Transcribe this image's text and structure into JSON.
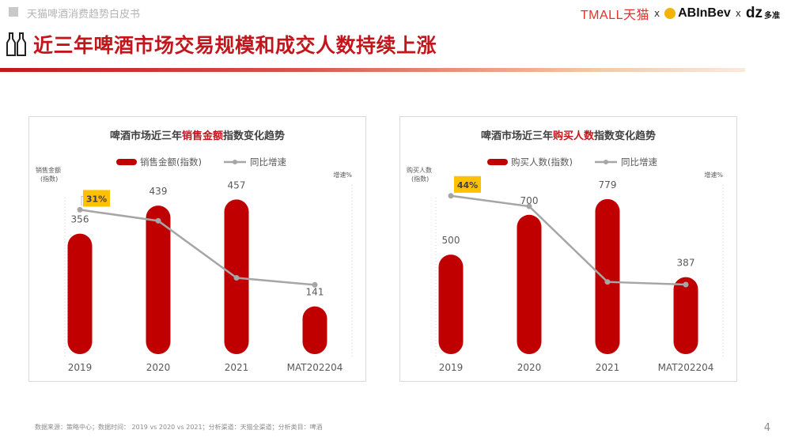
{
  "header": {
    "tag": "天猫啤酒消费趋势白皮书"
  },
  "logos": {
    "tmall": "TMALL天猫",
    "sep1": "x",
    "abinbev": "ABInBev",
    "sep2": "x",
    "dz": "dz",
    "dz_cn": "多准"
  },
  "page_title": "近三年啤酒市场交易规模和成交人数持续上涨",
  "footer": "数据来源：策略中心；数据时间： 2019 vs 2020 vs 2021；分析渠道：天猫全渠道；分析类目：啤酒",
  "page_number": "4",
  "colors": {
    "bar": "#c00000",
    "line": "#a6a6a6",
    "title_red": "#c3161c",
    "badge": "#ffc000"
  },
  "chart_data": [
    {
      "type": "bar",
      "title": {
        "prefix": "啤酒市场近三年",
        "highlight": "销售金额",
        "suffix": "指数变化趋势"
      },
      "categories": [
        "2019",
        "2020",
        "2021",
        "MAT202204"
      ],
      "series": [
        {
          "name": "销售金额(指数)",
          "type": "bar",
          "values": [
            356,
            439,
            457,
            141
          ]
        },
        {
          "name": "同比增速",
          "type": "line",
          "values": [
            0.31,
            0.2,
            -0.37,
            -0.44
          ]
        }
      ],
      "ylabel_left": [
        "销售金额",
        "(指数)"
      ],
      "ylabel_right": "增速%",
      "ylim": [
        0,
        500
      ],
      "annotation": "31%",
      "grid": false,
      "legend": "top-center"
    },
    {
      "type": "bar",
      "title": {
        "prefix": "啤酒市场近三年",
        "highlight": "购买人数",
        "suffix": "指数变化趋势"
      },
      "categories": [
        "2019",
        "2020",
        "2021",
        "MAT202204"
      ],
      "series": [
        {
          "name": "购买人数(指数)",
          "type": "bar",
          "values": [
            500,
            700,
            779,
            387
          ]
        },
        {
          "name": "同比增速",
          "type": "line",
          "values": [
            0.44,
            0.4,
            0.11,
            0.1
          ]
        }
      ],
      "ylabel_left": [
        "购买人数",
        "(指数)"
      ],
      "ylabel_right": "增速%",
      "ylim": [
        0,
        850
      ],
      "annotation": "44%",
      "grid": false,
      "legend": "top-center"
    }
  ]
}
